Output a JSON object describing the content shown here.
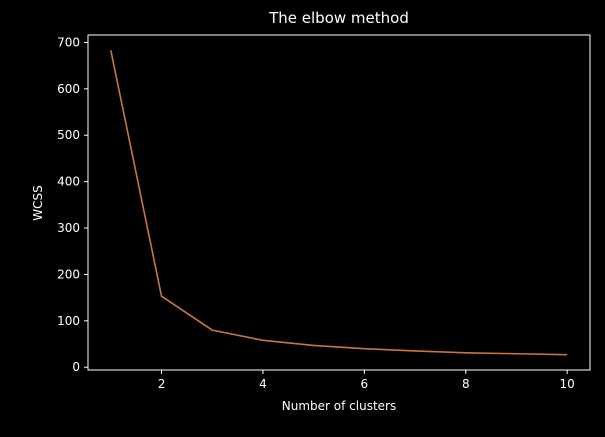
{
  "chart_data": {
    "type": "line",
    "title": "The elbow method",
    "x_label": "Number of clusters",
    "y_label": "WCSS",
    "x": [
      1,
      2,
      3,
      4,
      5,
      6,
      7,
      8,
      9,
      10
    ],
    "series": [
      {
        "name": "WCSS",
        "color": "#c8753f",
        "values": [
          683,
          153,
          80,
          58,
          47,
          40,
          35,
          31,
          29,
          27
        ]
      }
    ],
    "xlim": [
      0.55,
      10.45
    ],
    "xticks": [
      2,
      4,
      6,
      8,
      10
    ],
    "ylim": [
      -6,
      716
    ],
    "yticks": [
      0,
      100,
      200,
      300,
      400,
      500,
      600,
      700
    ]
  }
}
